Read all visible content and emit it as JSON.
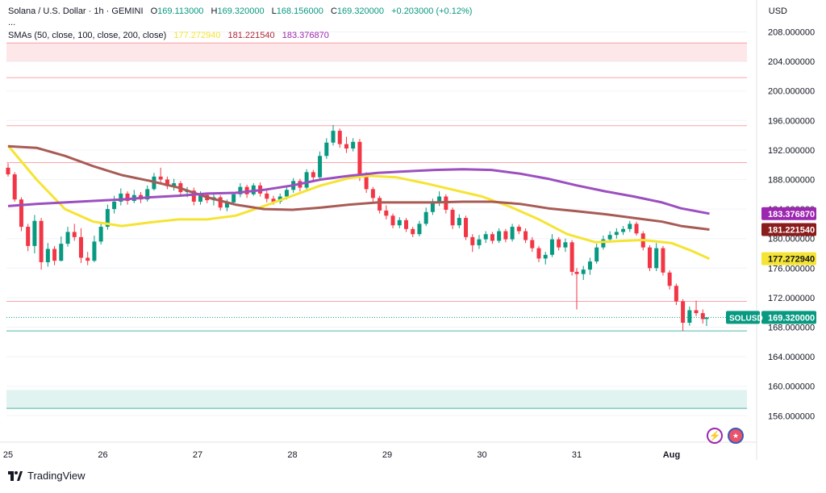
{
  "header": {
    "symbol": "Solana / U.S. Dollar · 1h · GEMINI",
    "o_label": "O",
    "o_value": "169.113000",
    "h_label": "H",
    "h_value": "169.320000",
    "l_label": "L",
    "l_value": "168.156000",
    "c_label": "C",
    "c_value": "169.320000",
    "change": "+0.203000 (+0.12%)",
    "dots": "...",
    "sma_label": "SMAs (50, close, 100, close, 200, close)",
    "sma50_value": "177.272940",
    "sma100_value": "181.221540",
    "sma200_value": "183.376870"
  },
  "currency": "USD",
  "branding": "TradingView",
  "colors": {
    "up": "#089981",
    "down": "#f23645",
    "sma50": "#f5e433",
    "sma100": "#a85b55",
    "sma200": "#9c4fbf"
  },
  "chart_data": {
    "type": "candlestick",
    "ylim": [
      154,
      210
    ],
    "y_ticks": [
      "156.000000",
      "160.000000",
      "164.000000",
      "168.000000",
      "172.000000",
      "176.000000",
      "180.000000",
      "184.000000",
      "188.000000",
      "192.000000",
      "196.000000",
      "200.000000",
      "204.000000",
      "208.000000"
    ],
    "x_ticks": [
      "25",
      "26",
      "27",
      "28",
      "29",
      "30",
      "31",
      "Aug"
    ],
    "price_labels": [
      {
        "text": "183.376870",
        "value": 183.37687,
        "series": "sma200"
      },
      {
        "text": "181.221540",
        "value": 181.22154,
        "series": "sma100"
      },
      {
        "text": "177.272940",
        "value": 177.27294,
        "series": "sma50"
      },
      {
        "text": "169.320000",
        "value": 169.32,
        "series": "last",
        "tag": "SOLUSD"
      }
    ],
    "zones": [
      {
        "from": 204.0,
        "to": 206.5,
        "kind": "resistance"
      },
      {
        "from": 157.0,
        "to": 159.5,
        "kind": "support"
      }
    ],
    "hlines": [
      {
        "value": 206.5,
        "kind": "resistance"
      },
      {
        "value": 201.8,
        "kind": "resistance"
      },
      {
        "value": 195.3,
        "kind": "resistance"
      },
      {
        "value": 190.3,
        "kind": "resistance"
      },
      {
        "value": 171.5,
        "kind": "resistance"
      },
      {
        "value": 167.5,
        "kind": "support"
      },
      {
        "value": 157.0,
        "kind": "support"
      }
    ],
    "candles": [
      {
        "x": 25.0,
        "o": 189.6,
        "h": 190.2,
        "l": 188.4,
        "c": 188.7
      },
      {
        "x": 25.07,
        "o": 188.7,
        "h": 189.0,
        "l": 185.0,
        "c": 185.3
      },
      {
        "x": 25.14,
        "o": 185.3,
        "h": 185.6,
        "l": 181.0,
        "c": 181.6
      },
      {
        "x": 25.21,
        "o": 181.6,
        "h": 182.0,
        "l": 178.3,
        "c": 179.0
      },
      {
        "x": 25.28,
        "o": 179.0,
        "h": 183.2,
        "l": 178.0,
        "c": 182.4
      },
      {
        "x": 25.35,
        "o": 182.4,
        "h": 182.8,
        "l": 175.8,
        "c": 176.8
      },
      {
        "x": 25.42,
        "o": 176.8,
        "h": 179.4,
        "l": 176.2,
        "c": 178.6
      },
      {
        "x": 25.49,
        "o": 178.6,
        "h": 179.0,
        "l": 176.4,
        "c": 177.0
      },
      {
        "x": 25.56,
        "o": 177.0,
        "h": 180.3,
        "l": 176.9,
        "c": 179.3
      },
      {
        "x": 25.63,
        "o": 179.3,
        "h": 181.6,
        "l": 178.9,
        "c": 180.9
      },
      {
        "x": 25.7,
        "o": 180.9,
        "h": 182.0,
        "l": 179.7,
        "c": 180.2
      },
      {
        "x": 25.77,
        "o": 180.2,
        "h": 181.4,
        "l": 176.7,
        "c": 177.4
      },
      {
        "x": 25.84,
        "o": 177.4,
        "h": 178.2,
        "l": 176.4,
        "c": 177.0
      },
      {
        "x": 25.91,
        "o": 177.0,
        "h": 180.4,
        "l": 176.8,
        "c": 179.6
      },
      {
        "x": 25.98,
        "o": 179.6,
        "h": 182.2,
        "l": 179.2,
        "c": 181.6
      },
      {
        "x": 26.05,
        "o": 181.6,
        "h": 184.6,
        "l": 181.2,
        "c": 184.0
      },
      {
        "x": 26.12,
        "o": 184.0,
        "h": 185.8,
        "l": 183.4,
        "c": 185.0
      },
      {
        "x": 26.19,
        "o": 185.0,
        "h": 186.8,
        "l": 184.5,
        "c": 186.1
      },
      {
        "x": 26.26,
        "o": 186.1,
        "h": 186.4,
        "l": 184.6,
        "c": 185.1
      },
      {
        "x": 26.33,
        "o": 185.1,
        "h": 186.6,
        "l": 184.8,
        "c": 185.9
      },
      {
        "x": 26.4,
        "o": 185.9,
        "h": 186.3,
        "l": 184.8,
        "c": 185.3
      },
      {
        "x": 26.47,
        "o": 185.3,
        "h": 187.2,
        "l": 185.0,
        "c": 186.7
      },
      {
        "x": 26.54,
        "o": 186.7,
        "h": 188.9,
        "l": 186.5,
        "c": 188.4
      },
      {
        "x": 26.61,
        "o": 188.4,
        "h": 189.6,
        "l": 187.6,
        "c": 188.0
      },
      {
        "x": 26.68,
        "o": 188.0,
        "h": 188.4,
        "l": 186.7,
        "c": 187.1
      },
      {
        "x": 26.75,
        "o": 187.1,
        "h": 188.1,
        "l": 186.5,
        "c": 187.5
      },
      {
        "x": 26.82,
        "o": 187.5,
        "h": 187.8,
        "l": 185.9,
        "c": 186.3
      },
      {
        "x": 26.89,
        "o": 186.3,
        "h": 187.0,
        "l": 185.6,
        "c": 186.5
      },
      {
        "x": 26.96,
        "o": 186.5,
        "h": 186.9,
        "l": 184.5,
        "c": 185.0
      },
      {
        "x": 27.03,
        "o": 185.0,
        "h": 186.4,
        "l": 184.6,
        "c": 185.9
      },
      {
        "x": 27.1,
        "o": 185.9,
        "h": 186.2,
        "l": 184.8,
        "c": 185.2
      },
      {
        "x": 27.17,
        "o": 185.2,
        "h": 186.0,
        "l": 184.5,
        "c": 185.6
      },
      {
        "x": 27.24,
        "o": 185.6,
        "h": 185.9,
        "l": 183.8,
        "c": 184.2
      },
      {
        "x": 27.31,
        "o": 184.2,
        "h": 185.3,
        "l": 183.7,
        "c": 184.9
      },
      {
        "x": 27.38,
        "o": 184.9,
        "h": 186.3,
        "l": 184.5,
        "c": 186.0
      },
      {
        "x": 27.45,
        "o": 186.0,
        "h": 187.5,
        "l": 185.6,
        "c": 187.0
      },
      {
        "x": 27.52,
        "o": 187.0,
        "h": 187.3,
        "l": 185.5,
        "c": 186.0
      },
      {
        "x": 27.59,
        "o": 186.0,
        "h": 187.5,
        "l": 185.8,
        "c": 187.2
      },
      {
        "x": 27.66,
        "o": 187.2,
        "h": 187.6,
        "l": 185.7,
        "c": 186.1
      },
      {
        "x": 27.73,
        "o": 186.1,
        "h": 186.5,
        "l": 184.9,
        "c": 185.4
      },
      {
        "x": 27.8,
        "o": 185.4,
        "h": 185.8,
        "l": 184.6,
        "c": 185.0
      },
      {
        "x": 27.87,
        "o": 185.0,
        "h": 186.1,
        "l": 184.7,
        "c": 185.7
      },
      {
        "x": 27.94,
        "o": 185.7,
        "h": 187.0,
        "l": 185.3,
        "c": 186.6
      },
      {
        "x": 28.01,
        "o": 186.6,
        "h": 188.2,
        "l": 186.2,
        "c": 187.8
      },
      {
        "x": 28.08,
        "o": 187.8,
        "h": 188.1,
        "l": 186.4,
        "c": 186.9
      },
      {
        "x": 28.15,
        "o": 186.9,
        "h": 189.4,
        "l": 186.6,
        "c": 189.0
      },
      {
        "x": 28.22,
        "o": 189.0,
        "h": 189.3,
        "l": 187.8,
        "c": 188.3
      },
      {
        "x": 28.29,
        "o": 188.3,
        "h": 191.8,
        "l": 188.0,
        "c": 191.2
      },
      {
        "x": 28.36,
        "o": 191.2,
        "h": 193.6,
        "l": 190.8,
        "c": 193.0
      },
      {
        "x": 28.43,
        "o": 193.0,
        "h": 195.4,
        "l": 192.6,
        "c": 194.6
      },
      {
        "x": 28.5,
        "o": 194.6,
        "h": 194.9,
        "l": 192.3,
        "c": 192.8
      },
      {
        "x": 28.57,
        "o": 192.8,
        "h": 193.8,
        "l": 191.6,
        "c": 192.2
      },
      {
        "x": 28.64,
        "o": 192.2,
        "h": 193.6,
        "l": 191.8,
        "c": 193.1
      },
      {
        "x": 28.71,
        "o": 193.1,
        "h": 193.5,
        "l": 187.8,
        "c": 188.6
      },
      {
        "x": 28.78,
        "o": 188.6,
        "h": 189.0,
        "l": 186.2,
        "c": 186.7
      },
      {
        "x": 28.85,
        "o": 186.7,
        "h": 187.0,
        "l": 185.0,
        "c": 185.5
      },
      {
        "x": 28.92,
        "o": 185.5,
        "h": 185.8,
        "l": 183.4,
        "c": 183.8
      },
      {
        "x": 28.99,
        "o": 183.8,
        "h": 184.5,
        "l": 182.6,
        "c": 183.1
      },
      {
        "x": 29.06,
        "o": 183.1,
        "h": 183.4,
        "l": 181.4,
        "c": 181.8
      },
      {
        "x": 29.13,
        "o": 181.8,
        "h": 182.9,
        "l": 181.4,
        "c": 182.5
      },
      {
        "x": 29.2,
        "o": 182.5,
        "h": 182.8,
        "l": 180.9,
        "c": 181.3
      },
      {
        "x": 29.27,
        "o": 181.3,
        "h": 181.6,
        "l": 180.2,
        "c": 180.6
      },
      {
        "x": 29.34,
        "o": 180.6,
        "h": 182.4,
        "l": 180.3,
        "c": 182.0
      },
      {
        "x": 29.41,
        "o": 182.0,
        "h": 184.2,
        "l": 181.7,
        "c": 183.6
      },
      {
        "x": 29.48,
        "o": 183.6,
        "h": 185.4,
        "l": 183.2,
        "c": 184.9
      },
      {
        "x": 29.55,
        "o": 184.9,
        "h": 186.4,
        "l": 184.4,
        "c": 185.7
      },
      {
        "x": 29.62,
        "o": 185.7,
        "h": 186.0,
        "l": 183.4,
        "c": 183.9
      },
      {
        "x": 29.69,
        "o": 183.9,
        "h": 184.2,
        "l": 181.3,
        "c": 181.8
      },
      {
        "x": 29.76,
        "o": 181.8,
        "h": 183.3,
        "l": 181.4,
        "c": 182.8
      },
      {
        "x": 29.83,
        "o": 182.8,
        "h": 183.1,
        "l": 179.8,
        "c": 180.2
      },
      {
        "x": 29.9,
        "o": 180.2,
        "h": 180.6,
        "l": 178.2,
        "c": 179.1
      },
      {
        "x": 29.97,
        "o": 179.1,
        "h": 180.5,
        "l": 178.6,
        "c": 179.9
      },
      {
        "x": 30.04,
        "o": 179.9,
        "h": 181.0,
        "l": 179.4,
        "c": 180.6
      },
      {
        "x": 30.11,
        "o": 180.6,
        "h": 180.9,
        "l": 179.3,
        "c": 179.7
      },
      {
        "x": 30.18,
        "o": 179.7,
        "h": 181.4,
        "l": 179.4,
        "c": 181.0
      },
      {
        "x": 30.25,
        "o": 181.0,
        "h": 181.3,
        "l": 179.5,
        "c": 179.9
      },
      {
        "x": 30.32,
        "o": 179.9,
        "h": 182.0,
        "l": 179.6,
        "c": 181.6
      },
      {
        "x": 30.39,
        "o": 181.6,
        "h": 181.9,
        "l": 180.6,
        "c": 181.0
      },
      {
        "x": 30.46,
        "o": 181.0,
        "h": 181.4,
        "l": 179.4,
        "c": 179.8
      },
      {
        "x": 30.53,
        "o": 179.8,
        "h": 180.2,
        "l": 178.2,
        "c": 178.7
      },
      {
        "x": 30.6,
        "o": 178.7,
        "h": 179.0,
        "l": 176.8,
        "c": 177.3
      },
      {
        "x": 30.67,
        "o": 177.3,
        "h": 178.2,
        "l": 176.5,
        "c": 177.8
      },
      {
        "x": 30.74,
        "o": 177.8,
        "h": 180.6,
        "l": 177.5,
        "c": 179.9
      },
      {
        "x": 30.81,
        "o": 179.9,
        "h": 180.2,
        "l": 178.4,
        "c": 178.8
      },
      {
        "x": 30.88,
        "o": 178.8,
        "h": 180.0,
        "l": 178.2,
        "c": 179.5
      },
      {
        "x": 30.95,
        "o": 179.5,
        "h": 179.8,
        "l": 175.0,
        "c": 175.5
      },
      {
        "x": 31.0,
        "o": 175.5,
        "h": 176.0,
        "l": 170.4,
        "c": 175.2
      },
      {
        "x": 31.07,
        "o": 175.2,
        "h": 176.3,
        "l": 174.4,
        "c": 175.8
      },
      {
        "x": 31.14,
        "o": 175.8,
        "h": 177.4,
        "l": 175.1,
        "c": 176.9
      },
      {
        "x": 31.21,
        "o": 176.9,
        "h": 179.3,
        "l": 176.6,
        "c": 178.8
      },
      {
        "x": 31.28,
        "o": 178.8,
        "h": 180.4,
        "l": 178.5,
        "c": 179.9
      },
      {
        "x": 31.35,
        "o": 179.9,
        "h": 181.0,
        "l": 179.5,
        "c": 180.5
      },
      {
        "x": 31.42,
        "o": 180.5,
        "h": 181.4,
        "l": 180.0,
        "c": 180.9
      },
      {
        "x": 31.49,
        "o": 180.9,
        "h": 181.7,
        "l": 180.5,
        "c": 181.3
      },
      {
        "x": 31.56,
        "o": 181.3,
        "h": 182.4,
        "l": 180.9,
        "c": 182.0
      },
      {
        "x": 31.63,
        "o": 182.0,
        "h": 182.3,
        "l": 180.4,
        "c": 180.7
      },
      {
        "x": 31.7,
        "o": 180.7,
        "h": 181.0,
        "l": 178.4,
        "c": 178.8
      },
      {
        "x": 31.77,
        "o": 178.8,
        "h": 179.1,
        "l": 175.6,
        "c": 176.0
      },
      {
        "x": 31.84,
        "o": 176.0,
        "h": 179.4,
        "l": 175.6,
        "c": 178.7
      },
      {
        "x": 31.91,
        "o": 178.7,
        "h": 179.0,
        "l": 175.0,
        "c": 175.4
      },
      {
        "x": 31.98,
        "o": 175.4,
        "h": 175.7,
        "l": 173.1,
        "c": 173.6
      },
      {
        "x": 32.05,
        "o": 173.6,
        "h": 173.9,
        "l": 171.0,
        "c": 171.5
      },
      {
        "x": 32.12,
        "o": 171.5,
        "h": 171.8,
        "l": 167.5,
        "c": 168.6
      },
      {
        "x": 32.19,
        "o": 168.6,
        "h": 170.8,
        "l": 168.2,
        "c": 170.3
      },
      {
        "x": 32.26,
        "o": 170.3,
        "h": 171.6,
        "l": 169.5,
        "c": 169.9
      },
      {
        "x": 32.33,
        "o": 169.9,
        "h": 170.4,
        "l": 168.5,
        "c": 169.1
      },
      {
        "x": 32.37,
        "o": 169.113,
        "h": 169.32,
        "l": 168.156,
        "c": 169.32
      }
    ],
    "series": [
      {
        "name": "sma50",
        "points": [
          [
            25.0,
            192.6
          ],
          [
            25.3,
            188.0
          ],
          [
            25.6,
            184.0
          ],
          [
            25.9,
            182.3
          ],
          [
            26.2,
            181.7
          ],
          [
            26.5,
            182.2
          ],
          [
            26.8,
            182.6
          ],
          [
            27.1,
            182.6
          ],
          [
            27.4,
            183.1
          ],
          [
            27.7,
            184.4
          ],
          [
            28.0,
            185.8
          ],
          [
            28.3,
            187.2
          ],
          [
            28.6,
            188.2
          ],
          [
            28.8,
            188.5
          ],
          [
            29.1,
            188.3
          ],
          [
            29.4,
            187.5
          ],
          [
            29.7,
            186.6
          ],
          [
            30.0,
            185.7
          ],
          [
            30.3,
            184.3
          ],
          [
            30.6,
            182.6
          ],
          [
            30.9,
            180.6
          ],
          [
            31.2,
            179.5
          ],
          [
            31.5,
            179.7
          ],
          [
            31.7,
            179.8
          ],
          [
            32.0,
            179.4
          ],
          [
            32.2,
            178.4
          ],
          [
            32.4,
            177.27
          ]
        ]
      },
      {
        "name": "sma100",
        "points": [
          [
            25.0,
            192.5
          ],
          [
            25.3,
            192.3
          ],
          [
            25.6,
            191.2
          ],
          [
            25.9,
            189.8
          ],
          [
            26.2,
            188.6
          ],
          [
            26.5,
            187.8
          ],
          [
            26.8,
            186.9
          ],
          [
            27.1,
            185.6
          ],
          [
            27.4,
            184.6
          ],
          [
            27.7,
            184.0
          ],
          [
            28.0,
            183.9
          ],
          [
            28.3,
            184.2
          ],
          [
            28.6,
            184.6
          ],
          [
            28.9,
            184.9
          ],
          [
            29.2,
            184.9
          ],
          [
            29.5,
            184.9
          ],
          [
            29.8,
            185.0
          ],
          [
            30.1,
            185.0
          ],
          [
            30.4,
            184.7
          ],
          [
            30.7,
            184.1
          ],
          [
            31.0,
            183.7
          ],
          [
            31.3,
            183.3
          ],
          [
            31.6,
            182.8
          ],
          [
            31.9,
            182.3
          ],
          [
            32.1,
            181.7
          ],
          [
            32.4,
            181.22
          ]
        ]
      },
      {
        "name": "sma200",
        "points": [
          [
            25.0,
            184.4
          ],
          [
            25.3,
            184.7
          ],
          [
            25.6,
            184.9
          ],
          [
            25.9,
            185.1
          ],
          [
            26.2,
            185.3
          ],
          [
            26.5,
            185.6
          ],
          [
            26.8,
            185.8
          ],
          [
            27.1,
            186.1
          ],
          [
            27.4,
            186.2
          ],
          [
            27.7,
            186.6
          ],
          [
            28.0,
            187.2
          ],
          [
            28.3,
            188.0
          ],
          [
            28.6,
            188.5
          ],
          [
            28.9,
            188.9
          ],
          [
            29.2,
            189.1
          ],
          [
            29.5,
            189.3
          ],
          [
            29.8,
            189.4
          ],
          [
            30.1,
            189.3
          ],
          [
            30.4,
            188.8
          ],
          [
            30.7,
            188.1
          ],
          [
            31.0,
            187.2
          ],
          [
            31.3,
            186.4
          ],
          [
            31.6,
            185.7
          ],
          [
            31.9,
            184.9
          ],
          [
            32.1,
            184.1
          ],
          [
            32.4,
            183.38
          ]
        ]
      }
    ]
  }
}
